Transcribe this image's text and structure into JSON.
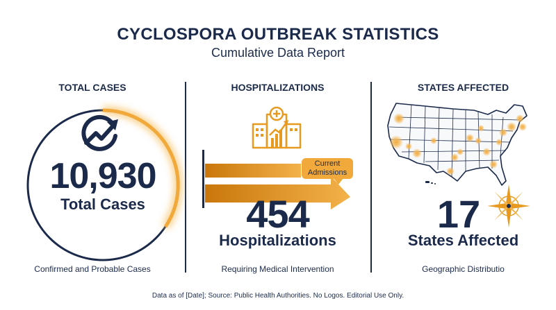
{
  "header": {
    "title": "CYCLOSPORA OUTBREAK STATISTICS",
    "subtitle": "Cumulative Data Report"
  },
  "cases": {
    "heading": "TOTAL CASES",
    "value": "10,930",
    "label": "Total Cases",
    "caption": "Confirmed and Probable Cases",
    "icon": "trend-up-icon"
  },
  "hospitalizations": {
    "heading": "HOSPITALIZATIONS",
    "value": "454",
    "label": "Hospitalizations",
    "caption": "Requiring Medical Intervention",
    "bubble": "Current Admissions",
    "icon": "hospital-chart-icon"
  },
  "states": {
    "heading": "STATES AFFECTED",
    "value": "17",
    "label": "States Affected",
    "caption": "Geographic Distributio",
    "icon": "compass-rose-icon"
  },
  "footer": {
    "note": "Data as of [Date]; Source: Public Health Authorities. No Logos. Editorial Use Only."
  },
  "colors": {
    "navy": "#1b2a4a",
    "accent": "#f0a93a",
    "accent_dark": "#d98a12"
  }
}
